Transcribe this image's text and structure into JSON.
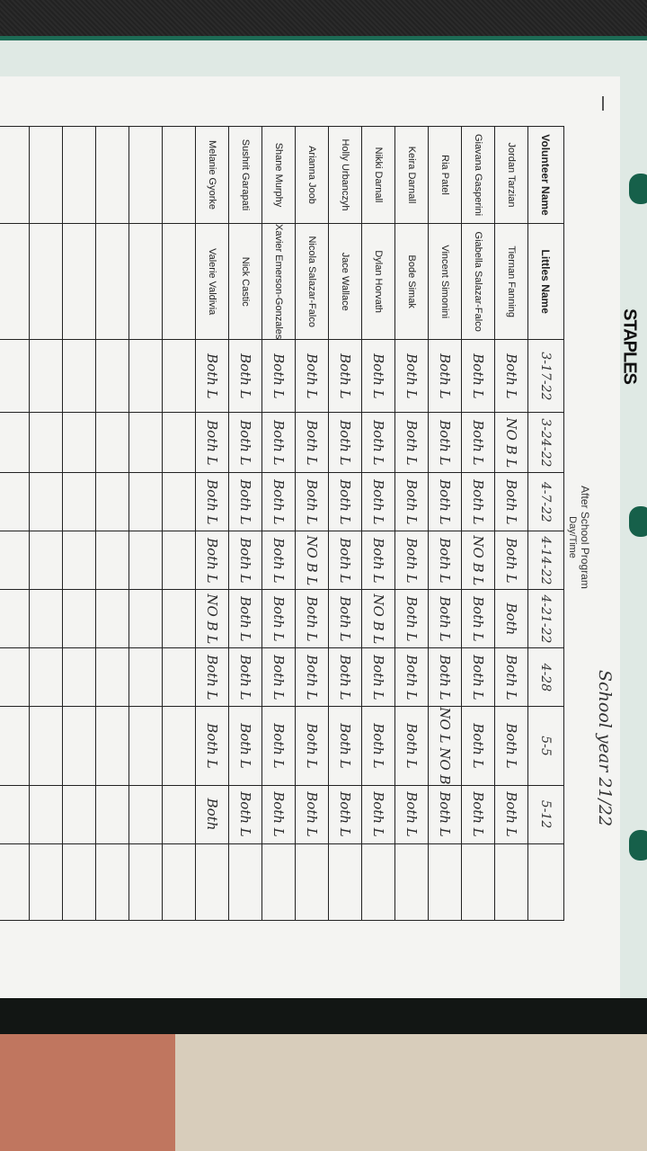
{
  "brand": "STAPLES",
  "sheet": {
    "title": "After School Program",
    "subtitle": "Day/Time",
    "school_year": "School year 21/22",
    "headers": [
      "Volunteer Name",
      "Littles Name",
      "3-17-22",
      "3-24-22",
      "4-7-22",
      "4-14-22",
      "4-21-22",
      "4-28",
      "5-5",
      "5-12",
      ""
    ],
    "rows": [
      {
        "volunteer": "Jordan Tarzian",
        "little": "Tiernan Fanning",
        "attendance": [
          "Both L",
          "NO B L",
          "Both L",
          "Both L",
          "Both",
          "Both L",
          "Both L",
          "Both L"
        ]
      },
      {
        "volunteer": "Giavana Gasperini",
        "little": "Giabella Salazar-Falco",
        "attendance": [
          "Both L",
          "Both L",
          "Both L",
          "NO B L",
          "Both L",
          "Both L",
          "Both L",
          "Both L"
        ]
      },
      {
        "volunteer": "Ria Patel",
        "little": "Vincent Simonini",
        "attendance": [
          "Both L",
          "Both L",
          "Both L",
          "Both L",
          "Both L",
          "Both L",
          "NO L NO B",
          "Both L"
        ]
      },
      {
        "volunteer": "Keira Darnall",
        "little": "Bode Simak",
        "attendance": [
          "Both L",
          "Both L",
          "Both L",
          "Both L",
          "Both L",
          "Both L",
          "Both L",
          "Both L"
        ]
      },
      {
        "volunteer": "Nikki Darnall",
        "little": "Dylan Horvath",
        "attendance": [
          "Both L",
          "Both L",
          "Both L",
          "Both L",
          "NO B L",
          "Both L",
          "Both L",
          "Both L"
        ]
      },
      {
        "volunteer": "Holly Urbanczyh",
        "little": "Jace Wallace",
        "attendance": [
          "Both L",
          "Both L",
          "Both L",
          "Both L",
          "Both L",
          "Both L",
          "Both L",
          "Both L"
        ]
      },
      {
        "volunteer": "Arianna Joob",
        "little": "Nicola Salazar-Falco",
        "attendance": [
          "Both L",
          "Both L",
          "Both L",
          "NO B L",
          "Both L",
          "Both L",
          "Both L",
          "Both L"
        ]
      },
      {
        "volunteer": "Shane Murphy",
        "little": "Xavier Emerson-Gonzales",
        "attendance": [
          "Both L",
          "Both L",
          "Both L",
          "Both L",
          "Both L",
          "Both L",
          "Both L",
          "Both L"
        ]
      },
      {
        "volunteer": "Sushrit Garapati",
        "little": "Nick Castic",
        "attendance": [
          "Both L",
          "Both L",
          "Both L",
          "Both L",
          "Both L",
          "Both L",
          "Both L",
          "Both L"
        ]
      },
      {
        "volunteer": "Melanie Gyorke",
        "little": "Valerie Valdivia",
        "attendance": [
          "Both L",
          "Both L",
          "Both L",
          "Both L",
          "NO B L",
          "Both L",
          "Both L",
          "Both"
        ]
      }
    ]
  }
}
